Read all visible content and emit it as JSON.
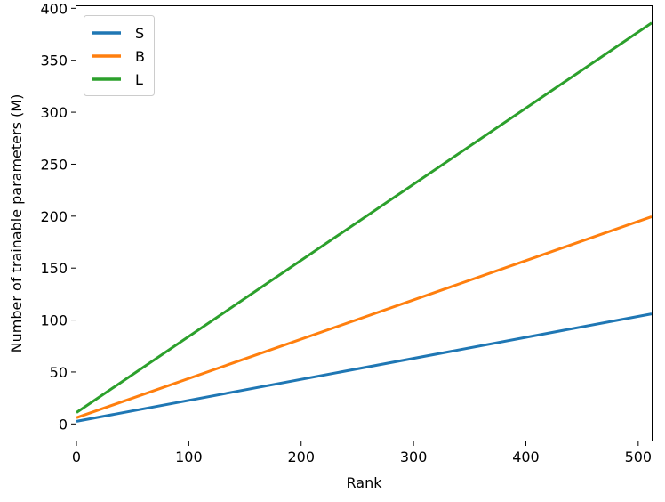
{
  "chart_data": {
    "type": "line",
    "xlabel": "Rank",
    "ylabel": "Number of trainable parameters (M)",
    "xlim": [
      0,
      512
    ],
    "ylim": [
      -16,
      402
    ],
    "xticks": [
      0,
      100,
      200,
      300,
      400,
      500
    ],
    "yticks": [
      0,
      50,
      100,
      150,
      200,
      250,
      300,
      350,
      400
    ],
    "grid": false,
    "legend_position": "top-left",
    "series": [
      {
        "name": "S",
        "color": "#1f77b4",
        "x": [
          0,
          512
        ],
        "y": [
          2.5,
          106
        ]
      },
      {
        "name": "B",
        "color": "#ff7f0e",
        "x": [
          0,
          512
        ],
        "y": [
          6,
          199.5
        ]
      },
      {
        "name": "L",
        "color": "#2ca02c",
        "x": [
          0,
          512
        ],
        "y": [
          11,
          386
        ]
      }
    ]
  }
}
